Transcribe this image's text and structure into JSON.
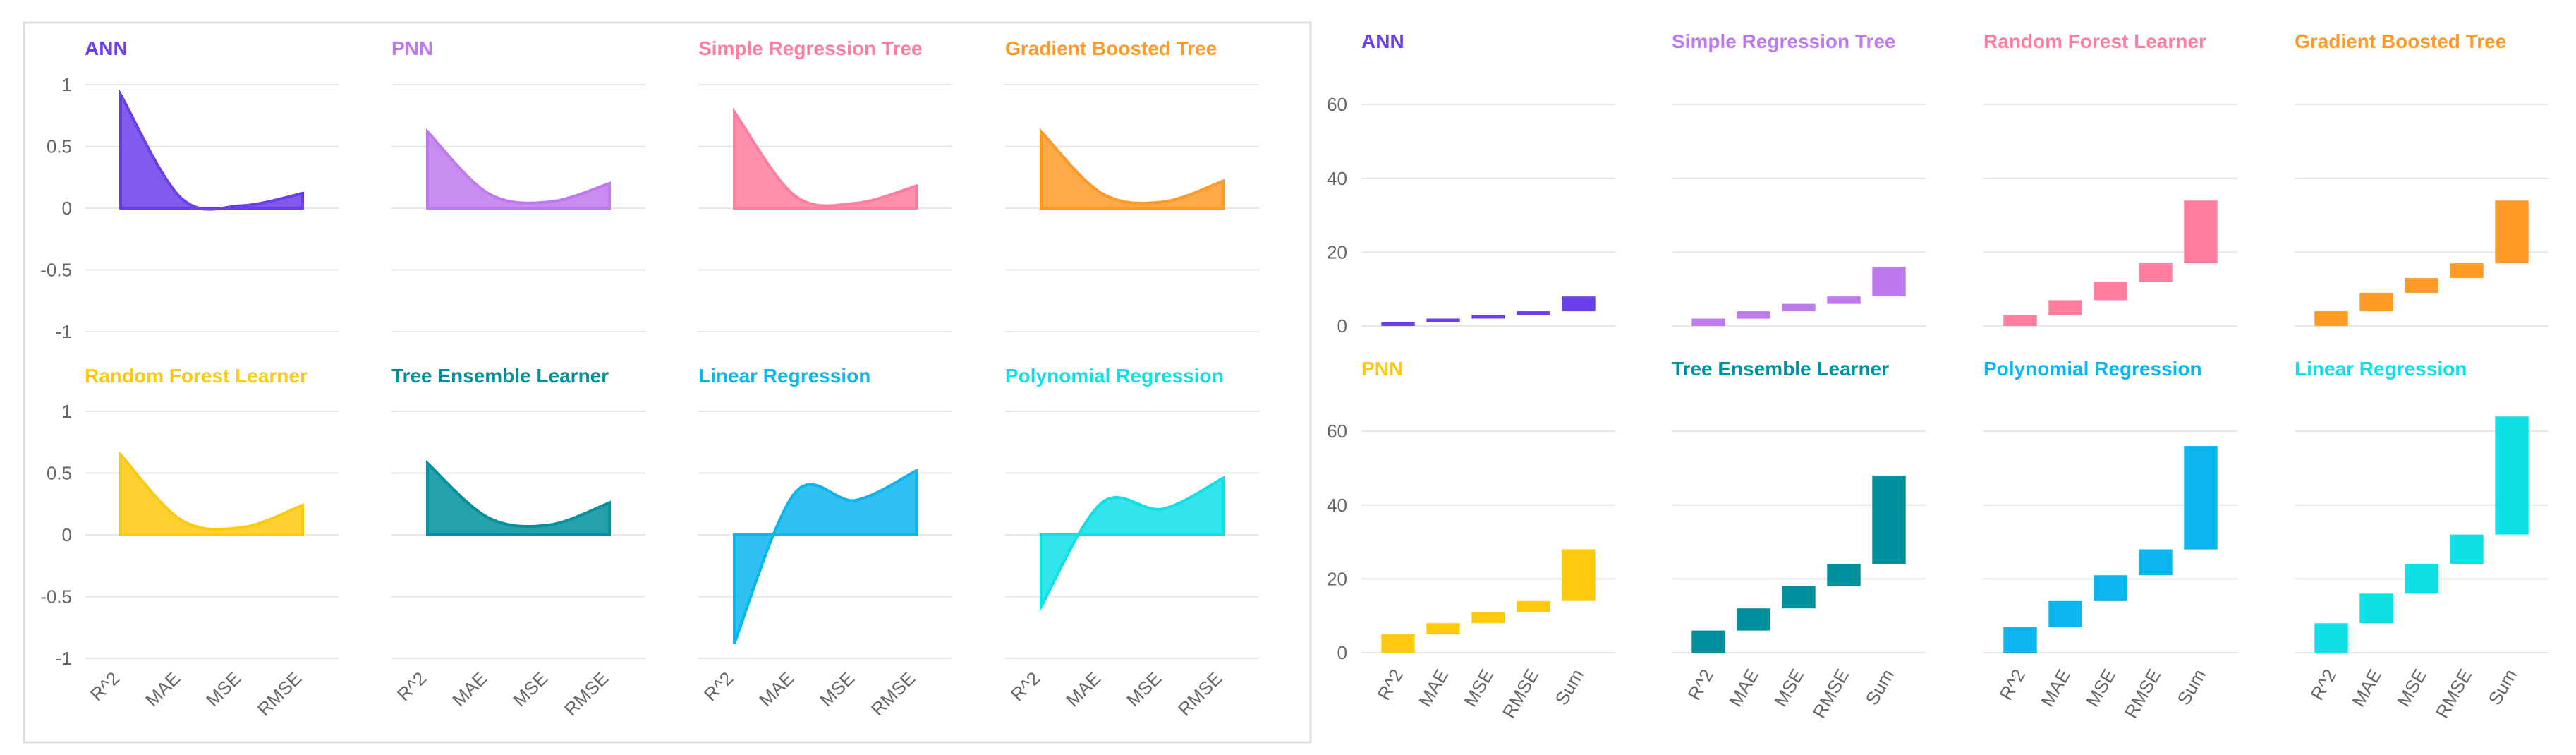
{
  "chart_data": [
    {
      "type": "area",
      "panel": "left",
      "categories": [
        "R^2",
        "MAE",
        "MSE",
        "RMSE"
      ],
      "ylim": [
        -1,
        1
      ],
      "yticks": [
        "1",
        "0.5",
        "0",
        "-0.5",
        "-1"
      ],
      "series": [
        {
          "name": "ANN",
          "color": "#6A3EEB",
          "values": [
            0.92,
            0.08,
            0.02,
            0.12
          ]
        },
        {
          "name": "PNN",
          "color": "#BF79EF",
          "values": [
            0.62,
            0.12,
            0.05,
            0.2
          ]
        },
        {
          "name": "Simple Regression Tree",
          "color": "#FF7EA0",
          "values": [
            0.78,
            0.1,
            0.04,
            0.18
          ]
        },
        {
          "name": "Gradient Boosted Tree",
          "color": "#FF9A27",
          "values": [
            0.62,
            0.12,
            0.05,
            0.22
          ]
        },
        {
          "name": "Random Forest Learner",
          "color": "#FFC90E",
          "values": [
            0.65,
            0.12,
            0.06,
            0.24
          ]
        },
        {
          "name": "Tree Ensemble Learner",
          "color": "#00909E",
          "values": [
            0.58,
            0.14,
            0.08,
            0.26
          ]
        },
        {
          "name": "Linear Regression",
          "color": "#0BB6EF",
          "values": [
            -0.88,
            0.34,
            0.28,
            0.52
          ]
        },
        {
          "name": "Polynomial Regression",
          "color": "#0EE0E6",
          "values": [
            -0.58,
            0.26,
            0.21,
            0.46
          ]
        }
      ]
    },
    {
      "type": "bar",
      "subtype": "waterfall",
      "panel": "right",
      "categories": [
        "R^2",
        "MAE",
        "MSE",
        "RMSE",
        "Sum"
      ],
      "ylim": [
        0,
        65
      ],
      "yticks": [
        "60",
        "40",
        "20",
        "0"
      ],
      "series": [
        {
          "name": "ANN",
          "color": "#6A3EEB",
          "values": [
            1,
            1,
            1,
            1,
            4
          ]
        },
        {
          "name": "Simple Regression Tree",
          "color": "#BF79EF",
          "values": [
            2,
            2,
            2,
            2,
            8
          ]
        },
        {
          "name": "Random Forest Learner",
          "color": "#FF7EA0",
          "values": [
            3,
            4,
            5,
            5,
            17
          ]
        },
        {
          "name": "Gradient Boosted Tree",
          "color": "#FF9A27",
          "values": [
            4,
            5,
            4,
            4,
            17
          ]
        },
        {
          "name": "PNN",
          "color": "#FFC90E",
          "values": [
            5,
            3,
            3,
            3,
            14
          ]
        },
        {
          "name": "Tree Ensemble Learner",
          "color": "#00909E",
          "values": [
            6,
            6,
            6,
            6,
            24
          ]
        },
        {
          "name": "Polynomial Regression",
          "color": "#0BB6EF",
          "values": [
            7,
            7,
            7,
            7,
            28
          ]
        },
        {
          "name": "Linear Regression",
          "color": "#0EE0E6",
          "values": [
            8,
            8,
            8,
            8,
            32
          ]
        }
      ]
    }
  ]
}
